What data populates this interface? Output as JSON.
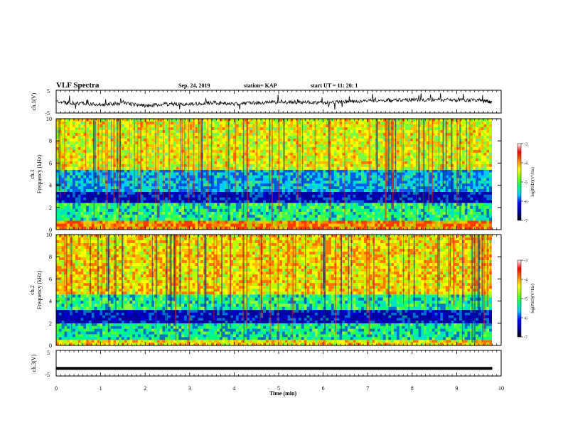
{
  "header": {
    "title": "VLF Spectra",
    "date": "Sep. 24, 2019",
    "station": "station= KAP",
    "start_ut": "start  UT =   11: 20: 1"
  },
  "chart_data": [
    {
      "type": "line",
      "id": "ch1_voltage",
      "ylabel": "ch.1(V)",
      "ylim": [
        -5,
        5
      ],
      "yticks": [
        "5",
        "-5"
      ],
      "xlim": [
        0,
        10
      ],
      "description_values": "noisy trace fluctuating roughly between -3 and 2.5 V",
      "series": [
        {
          "x": [
            0,
            0.5,
            1,
            1.5,
            2,
            2.5,
            3,
            3.5,
            4,
            4.5,
            5,
            5.5,
            6,
            6.5,
            7,
            7.5,
            8,
            8.5,
            9,
            9.5,
            9.8
          ],
          "values": [
            -0.2,
            -0.8,
            -1.2,
            -0.6,
            -1.8,
            -1.0,
            -1.2,
            -0.4,
            -1.0,
            -0.5,
            -0.3,
            -0.2,
            -0.5,
            0.0,
            0.4,
            0.6,
            0.8,
            0.9,
            0.6,
            0.8,
            -0.3
          ]
        }
      ]
    },
    {
      "type": "heatmap",
      "id": "ch1_spectrogram",
      "ylabel": "ch.1 Frequency (kHz)",
      "ylim": [
        0,
        10
      ],
      "yticks": [
        "0",
        "2",
        "4",
        "6",
        "8",
        "10"
      ],
      "xlim": [
        0,
        10
      ],
      "colorbar": {
        "label": "log(PSD)(V²/Hz)",
        "range": [
          -7,
          -3
        ],
        "ticks": [
          "-3",
          "-4",
          "-5",
          "-6",
          "-7"
        ]
      },
      "bands": [
        {
          "from_khz": 0,
          "to_khz": 0.8,
          "level": -3.6
        },
        {
          "from_khz": 0.8,
          "to_khz": 2.4,
          "level": -5.0
        },
        {
          "from_khz": 2.4,
          "to_khz": 3.4,
          "level": -6.3
        },
        {
          "from_khz": 3.4,
          "to_khz": 5.4,
          "level": -5.6
        },
        {
          "from_khz": 5.4,
          "to_khz": 10,
          "level": -4.2
        }
      ]
    },
    {
      "type": "heatmap",
      "id": "ch2_spectrogram",
      "ylabel": "ch.2 Frequency (kHz)",
      "ylim": [
        0,
        10
      ],
      "yticks": [
        "0",
        "2",
        "4",
        "6",
        "8",
        "10"
      ],
      "xlim": [
        0,
        10
      ],
      "colorbar": {
        "label": "log(PSD)(V²/Hz)",
        "range": [
          -7,
          -3
        ],
        "ticks": [
          "-3",
          "-4",
          "-5",
          "-6",
          "-7"
        ]
      },
      "bands": [
        {
          "from_khz": 0,
          "to_khz": 0.5,
          "level": -3.8
        },
        {
          "from_khz": 0.5,
          "to_khz": 2.0,
          "level": -5.2
        },
        {
          "from_khz": 2.0,
          "to_khz": 3.2,
          "level": -6.3
        },
        {
          "from_khz": 3.2,
          "to_khz": 4.6,
          "level": -5.0
        },
        {
          "from_khz": 4.6,
          "to_khz": 10,
          "level": -3.8
        }
      ]
    },
    {
      "type": "line",
      "id": "ch3_voltage",
      "ylabel": "ch.3(V)",
      "ylim": [
        -5,
        5
      ],
      "yticks": [
        "5",
        "-5"
      ],
      "xlim": [
        0,
        10
      ],
      "series": [
        {
          "x": [
            0,
            9.8
          ],
          "values": [
            -2,
            -2
          ]
        }
      ]
    }
  ],
  "xaxis": {
    "label": "Time (min)",
    "ticks": [
      "0",
      "1",
      "2",
      "3",
      "4",
      "5",
      "6",
      "7",
      "8",
      "9",
      "10"
    ]
  },
  "colors": {
    "colormap": [
      "#000000",
      "#0000a0",
      "#0000ff",
      "#00c8ff",
      "#00ff80",
      "#80ff00",
      "#ffff00",
      "#ff8000",
      "#ff0000",
      "#ffffff"
    ]
  }
}
